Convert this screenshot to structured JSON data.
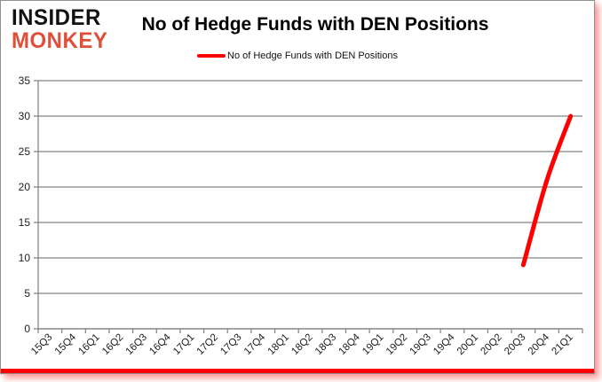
{
  "logo": {
    "line1": "INSIDER",
    "line2": "MONKEY",
    "line1_color": "#121212",
    "line2_color": "#e04f39"
  },
  "header": {
    "title": "No of Hedge Funds with DEN Positions"
  },
  "legend": {
    "items": [
      {
        "label": "No of Hedge Funds with DEN Positions",
        "color": "#fe0000"
      }
    ]
  },
  "frame": {
    "border_color": "#909090",
    "accent_stripe_color": "#fe0000"
  },
  "chart_data": {
    "type": "line",
    "title": "No of Hedge Funds with DEN Positions",
    "xlabel": "",
    "ylabel": "",
    "categories": [
      "15Q3",
      "15Q4",
      "16Q1",
      "16Q2",
      "16Q3",
      "16Q4",
      "17Q1",
      "17Q2",
      "17Q3",
      "17Q4",
      "18Q1",
      "18Q2",
      "18Q3",
      "18Q4",
      "19Q1",
      "19Q2",
      "19Q3",
      "19Q4",
      "20Q1",
      "20Q2",
      "20Q3",
      "20Q4",
      "21Q1"
    ],
    "series": [
      {
        "name": "No of Hedge Funds with DEN Positions",
        "color": "#fe0000",
        "values": [
          null,
          null,
          null,
          null,
          null,
          null,
          null,
          null,
          null,
          null,
          null,
          null,
          null,
          null,
          null,
          null,
          null,
          null,
          null,
          null,
          9,
          21,
          30
        ]
      }
    ],
    "ylim": [
      0,
      35
    ],
    "ytick_interval": 5,
    "grid": true,
    "legend_position": "top",
    "axis_color": "#808080",
    "label_color": "#1c1c1c"
  }
}
